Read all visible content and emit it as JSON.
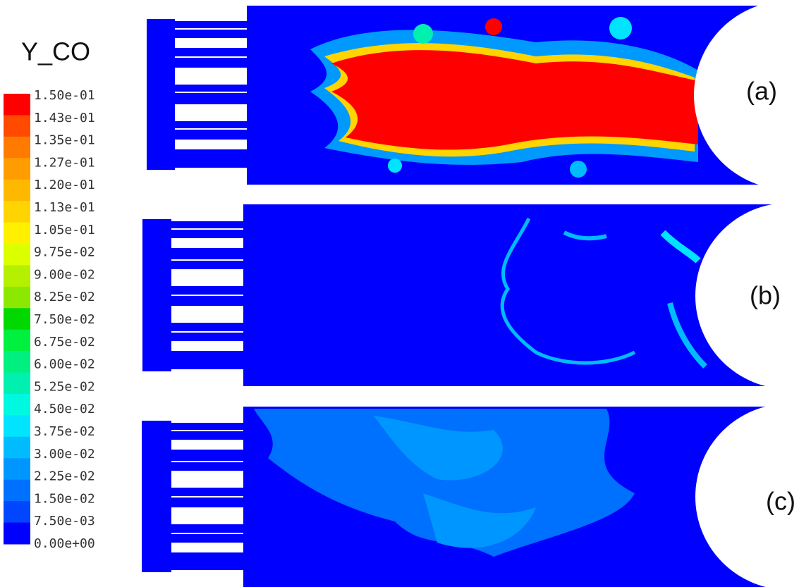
{
  "legend": {
    "title": "Y_CO",
    "levels": [
      {
        "label": "1.50e-01",
        "color": "#ff0000"
      },
      {
        "label": "1.43e-01",
        "color": "#ff4a00"
      },
      {
        "label": "1.35e-01",
        "color": "#ff7a00"
      },
      {
        "label": "1.27e-01",
        "color": "#ff9c00"
      },
      {
        "label": "1.20e-01",
        "color": "#ffb800"
      },
      {
        "label": "1.13e-01",
        "color": "#ffd400"
      },
      {
        "label": "1.05e-01",
        "color": "#fff000"
      },
      {
        "label": "9.75e-02",
        "color": "#dcff00"
      },
      {
        "label": "9.00e-02",
        "color": "#b4f000"
      },
      {
        "label": "8.25e-02",
        "color": "#8ce800"
      },
      {
        "label": "7.50e-02",
        "color": "#00d800"
      },
      {
        "label": "6.75e-02",
        "color": "#00f040"
      },
      {
        "label": "6.00e-02",
        "color": "#00f080"
      },
      {
        "label": "5.25e-02",
        "color": "#00f0b0"
      },
      {
        "label": "4.50e-02",
        "color": "#00f8e0"
      },
      {
        "label": "3.75e-02",
        "color": "#00e4ff"
      },
      {
        "label": "3.00e-02",
        "color": "#00bcff"
      },
      {
        "label": "2.25e-02",
        "color": "#0096ff"
      },
      {
        "label": "1.50e-02",
        "color": "#0070ff"
      },
      {
        "label": "7.50e-03",
        "color": "#0046ff"
      },
      {
        "label": "0.00e+00",
        "color": "#0000ff"
      }
    ]
  },
  "panels": [
    {
      "label": "(a)"
    },
    {
      "label": "(b)"
    },
    {
      "label": "(c)"
    }
  ]
}
